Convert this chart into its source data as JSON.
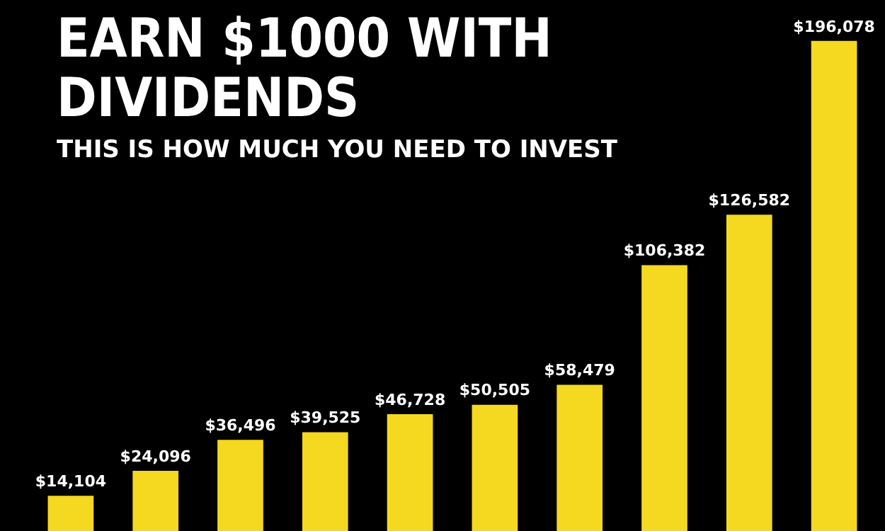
{
  "chart_data": {
    "type": "bar",
    "title": "EARN $1000 WITH DIVIDENDS",
    "subtitle": "THIS IS HOW MUCH YOU NEED TO INVEST",
    "categories": [
      null,
      null,
      null,
      null,
      null,
      null,
      null,
      null,
      null,
      null
    ],
    "values": [
      14104,
      24096,
      36496,
      39525,
      46728,
      50505,
      58479,
      106382,
      126582,
      196078
    ],
    "value_labels": [
      "$14,104",
      "$24,096",
      "$36,496",
      "$39,525",
      "$46,728",
      "$50,505",
      "$58,479",
      "$106,382",
      "$126,582",
      "$196,078"
    ],
    "color": "#f5d820"
  }
}
